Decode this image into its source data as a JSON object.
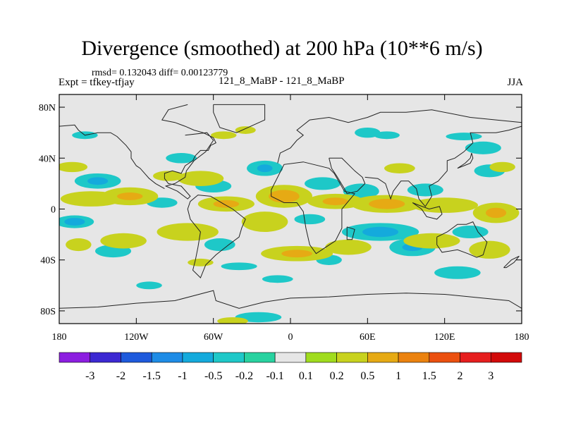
{
  "header": {
    "title": "Divergence (smoothed) at 200 hPa (10**6 m/s)",
    "stats": "rmsd= 0.132043 diff= 0.00123779",
    "expt": "Expt = tfkey-tfjay",
    "subtitle": "121_8_MaBP - 121_8_MaBP",
    "season": "JJA"
  },
  "chart_data": {
    "type": "heatmap",
    "title": "Divergence (smoothed) at 200 hPa (10**6 m/s)",
    "xlabel": "",
    "ylabel": "",
    "xlim": [
      -180,
      180
    ],
    "ylim": [
      -90,
      90
    ],
    "x_ticks": [
      {
        "value": -180,
        "label": "180"
      },
      {
        "value": -120,
        "label": "120W"
      },
      {
        "value": -60,
        "label": "60W"
      },
      {
        "value": 0,
        "label": "0"
      },
      {
        "value": 60,
        "label": "60E"
      },
      {
        "value": 120,
        "label": "120E"
      },
      {
        "value": 180,
        "label": "180"
      }
    ],
    "y_ticks": [
      {
        "value": 80,
        "label": "80N"
      },
      {
        "value": 40,
        "label": "40N"
      },
      {
        "value": 0,
        "label": "0"
      },
      {
        "value": -40,
        "label": "40S"
      },
      {
        "value": -80,
        "label": "80S"
      }
    ],
    "background_color": "#e6e6e6",
    "colorbar": {
      "labels": [
        "-3",
        "-2",
        "-1.5",
        "-1",
        "-0.5",
        "-0.2",
        "-0.1",
        "0.1",
        "0.2",
        "0.5",
        "1",
        "1.5",
        "2",
        "3"
      ],
      "colors": [
        "#8c1ee0",
        "#3c28d2",
        "#1e5adc",
        "#1e8ce6",
        "#14aadc",
        "#1ec8c8",
        "#28d2a0",
        "#e6e6e6",
        "#a0dc1e",
        "#c8d21e",
        "#e6aa14",
        "#eb820f",
        "#eb500f",
        "#e61e1e",
        "#d20a0a"
      ]
    },
    "fields": [
      {
        "level": "-0.2",
        "blobs": [
          [
            -150,
            22,
            18,
            6
          ],
          [
            -168,
            -10,
            15,
            5
          ],
          [
            -138,
            -33,
            14,
            5
          ],
          [
            -100,
            5,
            12,
            4
          ],
          [
            -60,
            18,
            14,
            5
          ],
          [
            -55,
            -28,
            12,
            5
          ],
          [
            -20,
            32,
            14,
            6
          ],
          [
            25,
            20,
            14,
            5
          ],
          [
            15,
            -8,
            12,
            4
          ],
          [
            55,
            14,
            14,
            6
          ],
          [
            70,
            -18,
            30,
            7
          ],
          [
            95,
            -30,
            18,
            7
          ],
          [
            105,
            15,
            14,
            5
          ],
          [
            140,
            -18,
            14,
            5
          ],
          [
            150,
            48,
            14,
            5
          ],
          [
            -85,
            40,
            12,
            4
          ],
          [
            -40,
            -45,
            14,
            3
          ],
          [
            60,
            60,
            10,
            4
          ],
          [
            75,
            58,
            10,
            3
          ],
          [
            135,
            57,
            14,
            3
          ],
          [
            155,
            30,
            12,
            5
          ],
          [
            -160,
            58,
            10,
            3
          ],
          [
            -110,
            -60,
            10,
            3
          ],
          [
            -10,
            -55,
            12,
            3
          ],
          [
            30,
            -40,
            10,
            4
          ],
          [
            130,
            -50,
            18,
            5
          ],
          [
            -25,
            -85,
            18,
            4
          ]
        ]
      },
      {
        "level": "-0.5",
        "blobs": [
          [
            -168,
            -10,
            8,
            3
          ],
          [
            -150,
            22,
            8,
            3
          ],
          [
            70,
            -18,
            14,
            4
          ],
          [
            -20,
            32,
            6,
            3
          ],
          [
            95,
            -30,
            8,
            3
          ]
        ]
      },
      {
        "level": "0.2",
        "blobs": [
          [
            -155,
            8,
            24,
            6
          ],
          [
            -125,
            10,
            22,
            7
          ],
          [
            -70,
            24,
            18,
            6
          ],
          [
            -50,
            4,
            22,
            6
          ],
          [
            -5,
            10,
            22,
            9
          ],
          [
            35,
            6,
            22,
            6
          ],
          [
            75,
            4,
            28,
            7
          ],
          [
            120,
            3,
            26,
            6
          ],
          [
            160,
            -3,
            18,
            8
          ],
          [
            -130,
            -25,
            18,
            6
          ],
          [
            -80,
            -18,
            24,
            7
          ],
          [
            -20,
            -10,
            18,
            8
          ],
          [
            5,
            -35,
            28,
            6
          ],
          [
            45,
            -30,
            18,
            6
          ],
          [
            110,
            -25,
            22,
            6
          ],
          [
            155,
            -32,
            16,
            7
          ],
          [
            -165,
            -28,
            10,
            5
          ],
          [
            -52,
            58,
            10,
            3
          ],
          [
            165,
            33,
            10,
            4
          ],
          [
            -95,
            26,
            12,
            4
          ],
          [
            -45,
            -88,
            12,
            3
          ],
          [
            -70,
            -42,
            10,
            3
          ],
          [
            85,
            32,
            12,
            4
          ],
          [
            -170,
            33,
            12,
            4
          ],
          [
            -35,
            62,
            8,
            3
          ]
        ]
      },
      {
        "level": "0.5",
        "blobs": [
          [
            -5,
            10,
            12,
            5
          ],
          [
            75,
            4,
            14,
            4
          ],
          [
            160,
            -3,
            8,
            4
          ],
          [
            -50,
            4,
            10,
            3
          ],
          [
            5,
            -35,
            12,
            3
          ],
          [
            35,
            6,
            10,
            3
          ],
          [
            -125,
            10,
            10,
            3
          ]
        ]
      }
    ],
    "coastlines": [
      [
        [
          -82,
          58
        ],
        [
          -65,
          60
        ],
        [
          -60,
          54
        ],
        [
          -66,
          45
        ],
        [
          -75,
          38
        ],
        [
          -81,
          30
        ],
        [
          -82,
          25
        ],
        [
          -90,
          20
        ],
        [
          -97,
          18
        ],
        [
          -88,
          14
        ],
        [
          -80,
          8
        ],
        [
          -78,
          10
        ],
        [
          -85,
          18
        ],
        [
          -95,
          20
        ],
        [
          -98,
          24
        ],
        [
          -98,
          28
        ],
        [
          -92,
          30
        ],
        [
          -85,
          28
        ],
        [
          -82,
          34
        ],
        [
          -76,
          38
        ],
        [
          -74,
          42
        ],
        [
          -70,
          46
        ],
        [
          -64,
          46
        ],
        [
          -62,
          50
        ],
        [
          -58,
          52
        ],
        [
          -60,
          56
        ],
        [
          -68,
          60
        ],
        [
          -75,
          62
        ],
        [
          -82,
          65
        ],
        [
          -90,
          68
        ],
        [
          -100,
          70
        ],
        [
          -95,
          78
        ],
        [
          -80,
          82
        ]
      ],
      [
        [
          -62,
          10
        ],
        [
          -52,
          4
        ],
        [
          -45,
          0
        ],
        [
          -35,
          -8
        ],
        [
          -38,
          -15
        ],
        [
          -40,
          -22
        ],
        [
          -48,
          -28
        ],
        [
          -58,
          -36
        ],
        [
          -66,
          -44
        ],
        [
          -70,
          -54
        ],
        [
          -76,
          -48
        ],
        [
          -74,
          -40
        ],
        [
          -72,
          -30
        ],
        [
          -70,
          -18
        ],
        [
          -78,
          -8
        ],
        [
          -80,
          0
        ],
        [
          -78,
          6
        ],
        [
          -72,
          11
        ],
        [
          -62,
          10
        ]
      ],
      [
        [
          -60,
          82
        ],
        [
          -20,
          82
        ],
        [
          -20,
          70
        ],
        [
          -42,
          60
        ],
        [
          -55,
          64
        ],
        [
          -60,
          76
        ],
        [
          -60,
          82
        ]
      ],
      [
        [
          -15,
          15
        ],
        [
          -5,
          35
        ],
        [
          10,
          37
        ],
        [
          30,
          32
        ],
        [
          34,
          28
        ],
        [
          42,
          14
        ],
        [
          50,
          12
        ],
        [
          40,
          0
        ],
        [
          40,
          -15
        ],
        [
          35,
          -25
        ],
        [
          20,
          -35
        ],
        [
          15,
          -28
        ],
        [
          12,
          -15
        ],
        [
          10,
          -2
        ],
        [
          5,
          5
        ],
        [
          -5,
          5
        ],
        [
          -15,
          10
        ],
        [
          -15,
          15
        ]
      ],
      [
        [
          -10,
          36
        ],
        [
          -8,
          44
        ],
        [
          0,
          48
        ],
        [
          5,
          54
        ],
        [
          10,
          58
        ],
        [
          5,
          62
        ],
        [
          15,
          70
        ],
        [
          30,
          72
        ],
        [
          45,
          68
        ],
        [
          60,
          72
        ],
        [
          70,
          76
        ],
        [
          90,
          76
        ],
        [
          110,
          78
        ],
        [
          140,
          72
        ],
        [
          160,
          70
        ],
        [
          180,
          68
        ]
      ],
      [
        [
          30,
          40
        ],
        [
          40,
          40
        ],
        [
          50,
          30
        ],
        [
          56,
          25
        ],
        [
          58,
          20
        ],
        [
          52,
          14
        ],
        [
          44,
          12
        ],
        [
          42,
          16
        ],
        [
          36,
          26
        ],
        [
          32,
          32
        ],
        [
          30,
          40
        ]
      ],
      [
        [
          58,
          25
        ],
        [
          68,
          24
        ],
        [
          74,
          20
        ],
        [
          78,
          8
        ],
        [
          80,
          14
        ],
        [
          86,
          22
        ],
        [
          92,
          22
        ],
        [
          98,
          16
        ],
        [
          100,
          8
        ],
        [
          105,
          2
        ],
        [
          110,
          10
        ],
        [
          108,
          18
        ],
        [
          115,
          22
        ],
        [
          122,
          30
        ],
        [
          122,
          38
        ],
        [
          128,
          40
        ],
        [
          135,
          45
        ],
        [
          142,
          52
        ],
        [
          140,
          60
        ],
        [
          160,
          60
        ],
        [
          170,
          62
        ],
        [
          180,
          65
        ]
      ],
      [
        [
          95,
          5
        ],
        [
          102,
          0
        ],
        [
          106,
          -6
        ],
        [
          114,
          -8
        ],
        [
          118,
          -4
        ],
        [
          116,
          2
        ],
        [
          108,
          0
        ],
        [
          100,
          3
        ],
        [
          95,
          5
        ]
      ],
      [
        [
          114,
          -22
        ],
        [
          122,
          -18
        ],
        [
          130,
          -12
        ],
        [
          137,
          -12
        ],
        [
          142,
          -10
        ],
        [
          146,
          -18
        ],
        [
          153,
          -26
        ],
        [
          150,
          -36
        ],
        [
          145,
          -38
        ],
        [
          138,
          -35
        ],
        [
          130,
          -32
        ],
        [
          118,
          -34
        ],
        [
          114,
          -28
        ],
        [
          114,
          -22
        ]
      ],
      [
        [
          166,
          -46
        ],
        [
          172,
          -40
        ],
        [
          178,
          -37
        ],
        [
          174,
          -42
        ],
        [
          168,
          -46
        ],
        [
          166,
          -46
        ]
      ],
      [
        [
          44,
          -14
        ],
        [
          50,
          -16
        ],
        [
          48,
          -24
        ],
        [
          44,
          -24
        ],
        [
          44,
          -14
        ]
      ],
      [
        [
          -180,
          -78
        ],
        [
          -150,
          -77
        ],
        [
          -120,
          -74
        ],
        [
          -90,
          -72
        ],
        [
          -60,
          -64
        ],
        [
          -58,
          -72
        ],
        [
          -40,
          -78
        ],
        [
          -20,
          -73
        ],
        [
          0,
          -70
        ],
        [
          30,
          -69
        ],
        [
          60,
          -67
        ],
        [
          90,
          -66
        ],
        [
          120,
          -67
        ],
        [
          150,
          -70
        ],
        [
          170,
          -72
        ],
        [
          180,
          -78
        ]
      ],
      [
        [
          -180,
          65
        ],
        [
          -168,
          66
        ],
        [
          -165,
          62
        ],
        [
          -160,
          58
        ],
        [
          -150,
          60
        ],
        [
          -140,
          60
        ],
        [
          -135,
          57
        ],
        [
          -128,
          50
        ],
        [
          -124,
          45
        ],
        [
          -124,
          40
        ],
        [
          -120,
          34
        ],
        [
          -117,
          32
        ],
        [
          -110,
          24
        ],
        [
          -105,
          20
        ],
        [
          -98,
          16
        ]
      ],
      [
        [
          130,
          32
        ],
        [
          135,
          34
        ],
        [
          140,
          36
        ],
        [
          142,
          40
        ],
        [
          141,
          44
        ],
        [
          140,
          40
        ],
        [
          136,
          36
        ],
        [
          130,
          32
        ]
      ]
    ]
  }
}
